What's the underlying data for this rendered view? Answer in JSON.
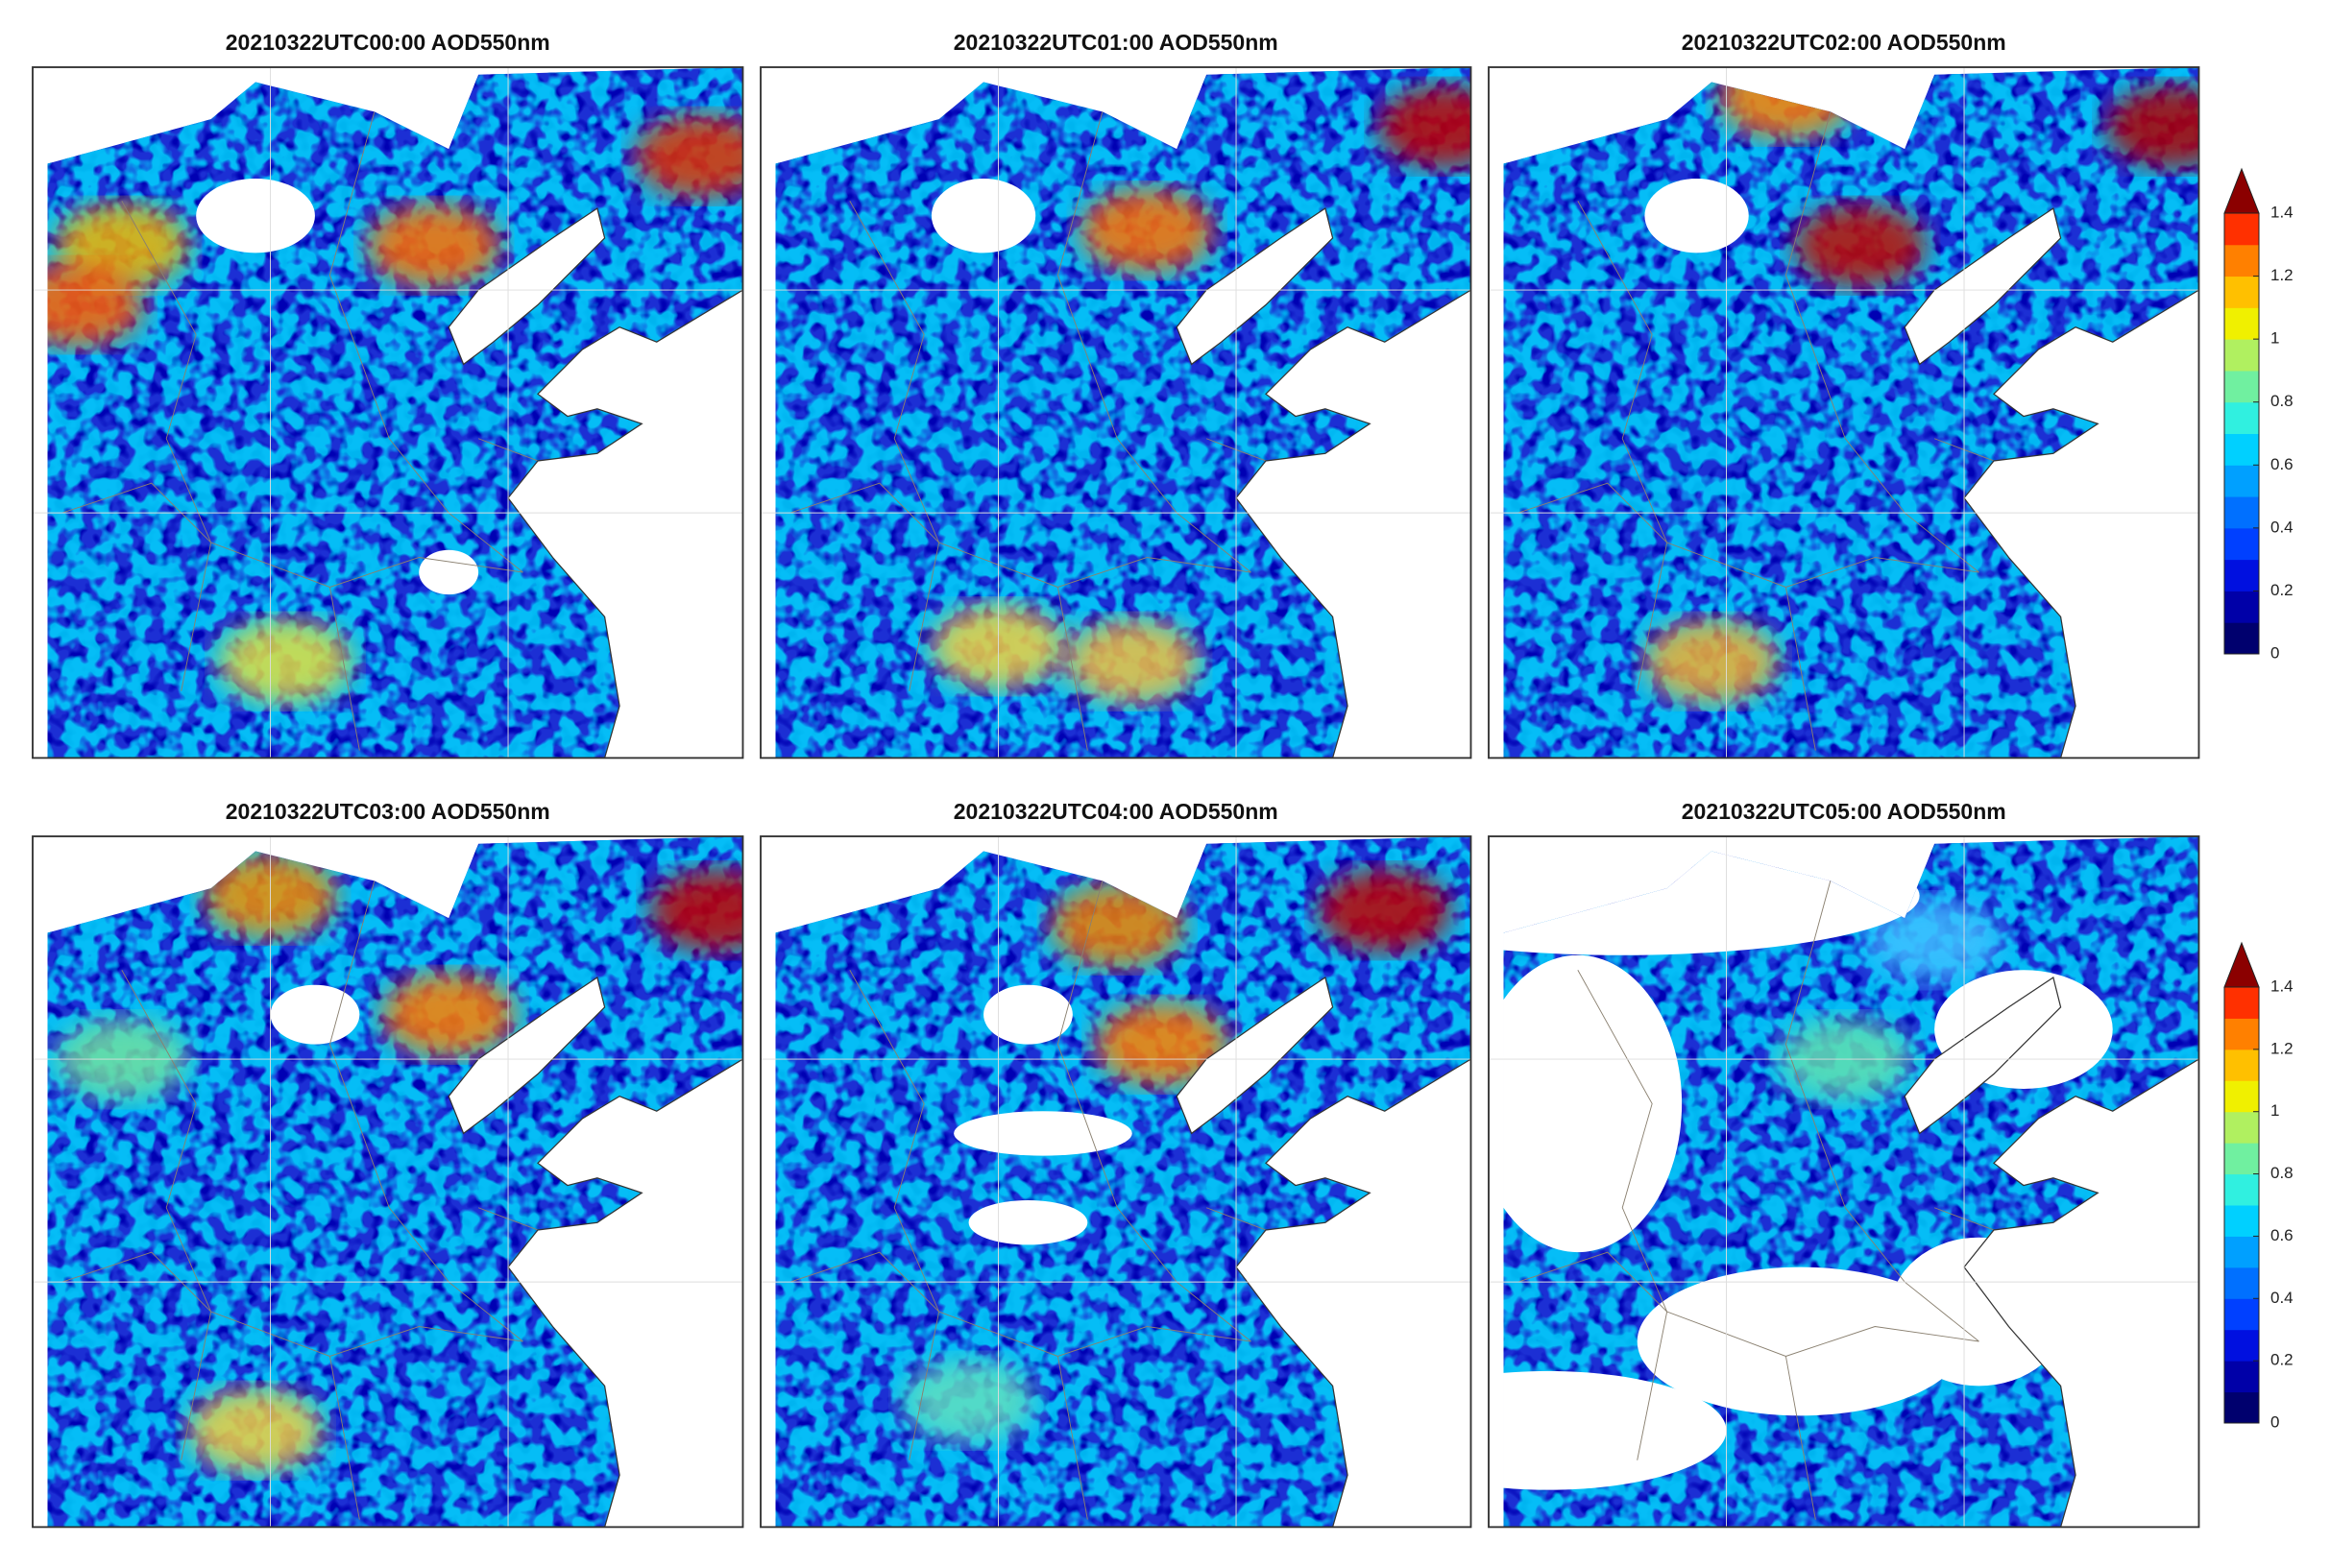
{
  "panels": [
    {
      "title": "20210322UTC00:00 AOD550nm"
    },
    {
      "title": "20210322UTC01:00 AOD550nm"
    },
    {
      "title": "20210322UTC02:00 AOD550nm"
    },
    {
      "title": "20210322UTC03:00 AOD550nm"
    },
    {
      "title": "20210322UTC04:00 AOD550nm"
    },
    {
      "title": "20210322UTC05:00 AOD550nm"
    }
  ],
  "colorbars": [
    {
      "ticks": [
        0,
        0.2,
        0.4,
        0.6,
        0.8,
        1,
        1.2,
        1.4
      ]
    },
    {
      "ticks": [
        0,
        0.2,
        0.4,
        0.6,
        0.8,
        1,
        1.2,
        1.4
      ]
    }
  ]
}
